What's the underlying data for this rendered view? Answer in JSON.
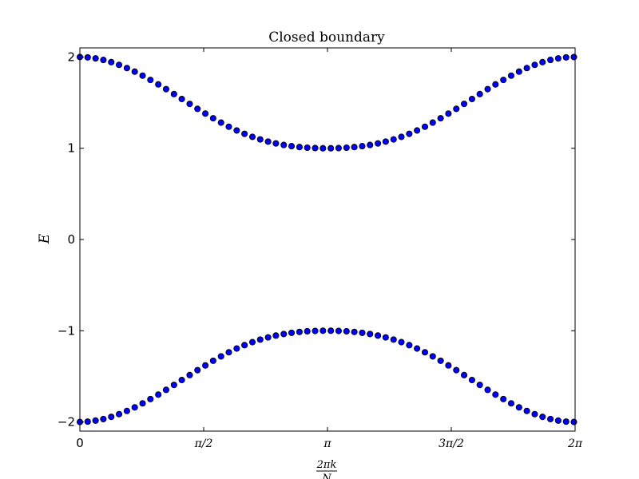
{
  "chart_data": {
    "type": "scatter",
    "title": "Closed boundary",
    "ylabel": "E",
    "xlabel": {
      "numerator": "2πk",
      "denominator": "N"
    },
    "xlim": [
      0,
      6.283185307
    ],
    "ylim": [
      -2.1,
      2.1
    ],
    "x_ticks": [
      {
        "value": 0,
        "label": "0"
      },
      {
        "value": 1.570796327,
        "label": "π/2"
      },
      {
        "value": 3.141592654,
        "label": "π"
      },
      {
        "value": 4.71238898,
        "label": "3π/2"
      },
      {
        "value": 6.283185307,
        "label": "2π"
      }
    ],
    "y_ticks": [
      {
        "value": 2,
        "label": "2"
      },
      {
        "value": 1,
        "label": "1"
      },
      {
        "value": 0,
        "label": "0"
      },
      {
        "value": -1,
        "label": "−1"
      },
      {
        "value": -2,
        "label": "−2"
      }
    ],
    "grid": false,
    "marker_color": "#0000ff",
    "marker_edge": "#000000",
    "series": [
      {
        "x": [
          0.0,
          0.099,
          0.199,
          0.298,
          0.398,
          0.497,
          0.597,
          0.696,
          0.796,
          0.895,
          0.995,
          1.094,
          1.194,
          1.293,
          1.393,
          1.492,
          1.592,
          1.691,
          1.791,
          1.89,
          1.99,
          2.089,
          2.189,
          2.288,
          2.388,
          2.487,
          2.587,
          2.686,
          2.786,
          2.885,
          2.985,
          3.084,
          3.184,
          3.283,
          3.383,
          3.482,
          3.582,
          3.681,
          3.781,
          3.88,
          3.98,
          4.079,
          4.179,
          4.278,
          4.378,
          4.477,
          4.577,
          4.676,
          4.776,
          4.875,
          4.975,
          5.074,
          5.174,
          5.273,
          5.373,
          5.472,
          5.572,
          5.671,
          5.771,
          5.87,
          5.97,
          6.069,
          6.169,
          6.268
        ],
        "y": [
          2.0,
          1.996,
          1.985,
          1.968,
          1.944,
          1.914,
          1.879,
          1.84,
          1.796,
          1.749,
          1.7,
          1.648,
          1.594,
          1.54,
          1.486,
          1.432,
          1.38,
          1.329,
          1.281,
          1.236,
          1.195,
          1.158,
          1.125,
          1.097,
          1.073,
          1.053,
          1.036,
          1.023,
          1.013,
          1.006,
          1.002,
          1.0,
          1.0,
          1.002,
          1.006,
          1.013,
          1.023,
          1.036,
          1.053,
          1.073,
          1.097,
          1.125,
          1.158,
          1.195,
          1.236,
          1.281,
          1.329,
          1.38,
          1.432,
          1.486,
          1.54,
          1.594,
          1.648,
          1.7,
          1.749,
          1.796,
          1.84,
          1.879,
          1.914,
          1.944,
          1.968,
          1.985,
          1.996,
          2.0
        ]
      },
      {
        "x": [
          0.0,
          0.099,
          0.199,
          0.298,
          0.398,
          0.497,
          0.597,
          0.696,
          0.796,
          0.895,
          0.995,
          1.094,
          1.194,
          1.293,
          1.393,
          1.492,
          1.592,
          1.691,
          1.791,
          1.89,
          1.99,
          2.089,
          2.189,
          2.288,
          2.388,
          2.487,
          2.587,
          2.686,
          2.786,
          2.885,
          2.985,
          3.084,
          3.184,
          3.283,
          3.383,
          3.482,
          3.582,
          3.681,
          3.781,
          3.88,
          3.98,
          4.079,
          4.179,
          4.278,
          4.378,
          4.477,
          4.577,
          4.676,
          4.776,
          4.875,
          4.975,
          5.074,
          5.174,
          5.273,
          5.373,
          5.472,
          5.572,
          5.671,
          5.771,
          5.87,
          5.97,
          6.069,
          6.169,
          6.268
        ],
        "y": [
          -2.0,
          -1.996,
          -1.985,
          -1.968,
          -1.944,
          -1.914,
          -1.879,
          -1.84,
          -1.796,
          -1.749,
          -1.7,
          -1.648,
          -1.594,
          -1.54,
          -1.486,
          -1.432,
          -1.38,
          -1.329,
          -1.281,
          -1.236,
          -1.195,
          -1.158,
          -1.125,
          -1.097,
          -1.073,
          -1.053,
          -1.036,
          -1.023,
          -1.013,
          -1.006,
          -1.002,
          -1.0,
          -1.0,
          -1.002,
          -1.006,
          -1.013,
          -1.023,
          -1.036,
          -1.053,
          -1.073,
          -1.097,
          -1.125,
          -1.158,
          -1.195,
          -1.236,
          -1.281,
          -1.329,
          -1.38,
          -1.432,
          -1.486,
          -1.54,
          -1.594,
          -1.648,
          -1.7,
          -1.749,
          -1.796,
          -1.84,
          -1.879,
          -1.914,
          -1.944,
          -1.968,
          -1.985,
          -1.996,
          -2.0
        ]
      }
    ]
  }
}
